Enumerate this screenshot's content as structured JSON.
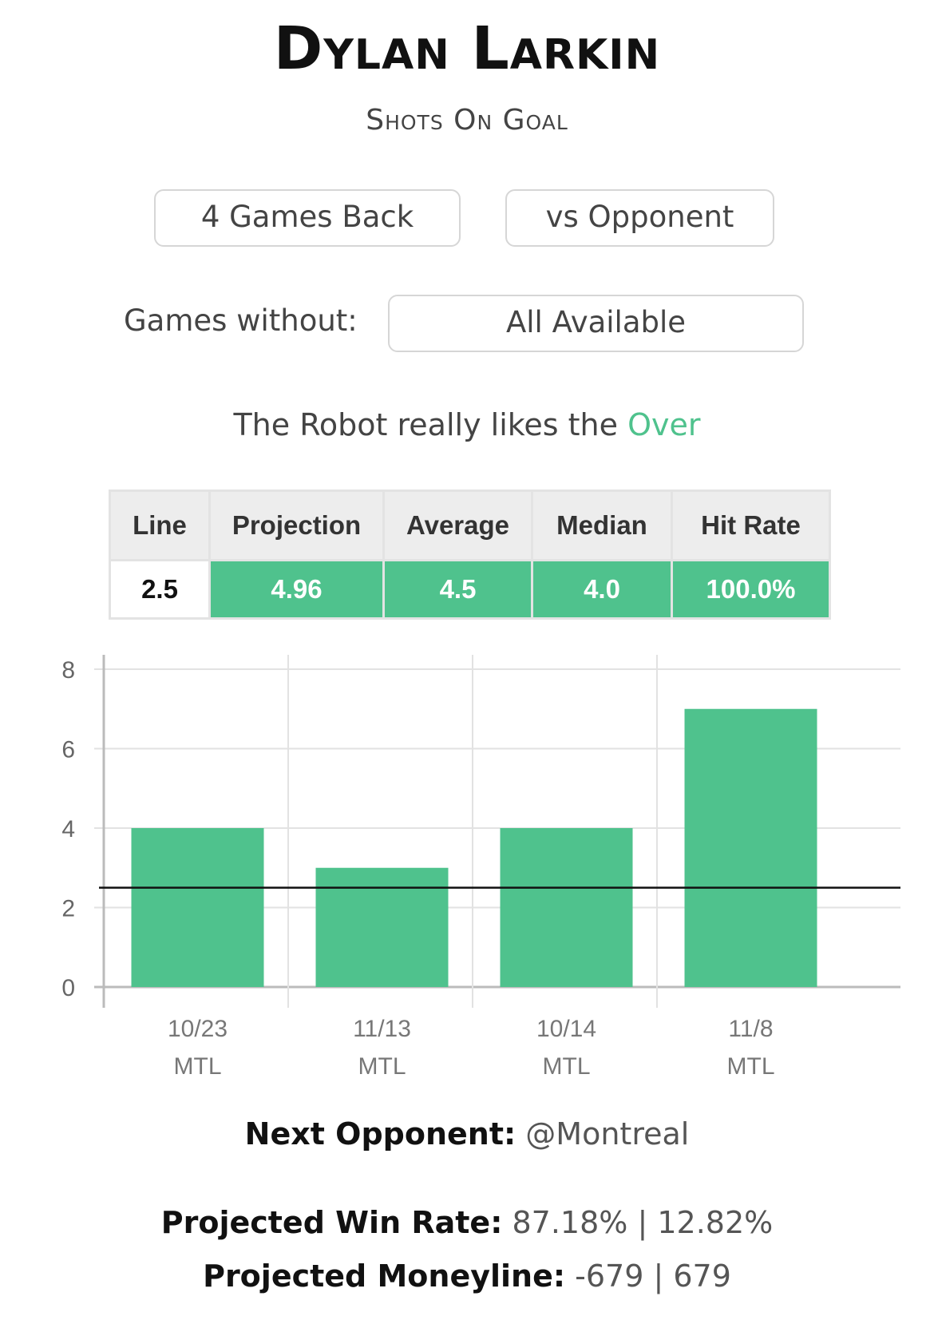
{
  "header": {
    "player_name": "Dylan Larkin",
    "stat_type": "Shots On Goal"
  },
  "filters": {
    "games_back": "4 Games Back",
    "vs_opponent": "vs Opponent",
    "games_without_label": "Games without:",
    "games_without_value": "All Available"
  },
  "recommendation": {
    "prefix": "The Robot really likes the",
    "pick": "Over",
    "pick_color": "#4fc28d"
  },
  "stats_table": {
    "headers": [
      "Line",
      "Projection",
      "Average",
      "Median",
      "Hit Rate"
    ],
    "values": [
      "2.5",
      "4.96",
      "4.5",
      "4.0",
      "100.0%"
    ]
  },
  "chart_data": {
    "type": "bar",
    "categories": [
      "10/23",
      "11/13",
      "10/14",
      "11/8"
    ],
    "opponents": [
      "MTL",
      "MTL",
      "MTL",
      "MTL"
    ],
    "values": [
      4,
      3,
      4,
      7
    ],
    "ylim": [
      0,
      8
    ],
    "yticks": [
      0,
      2,
      4,
      6,
      8
    ],
    "reference_line": 2.5,
    "bar_color": "#4fc28d",
    "grid": true
  },
  "next_opponent": {
    "label": "Next Opponent:",
    "value": "@Montreal"
  },
  "projections": {
    "win_rate_label": "Projected Win Rate:",
    "win_rate_value": "87.18% | 12.82%",
    "moneyline_label": "Projected Moneyline:",
    "moneyline_value": "-679 | 679"
  }
}
